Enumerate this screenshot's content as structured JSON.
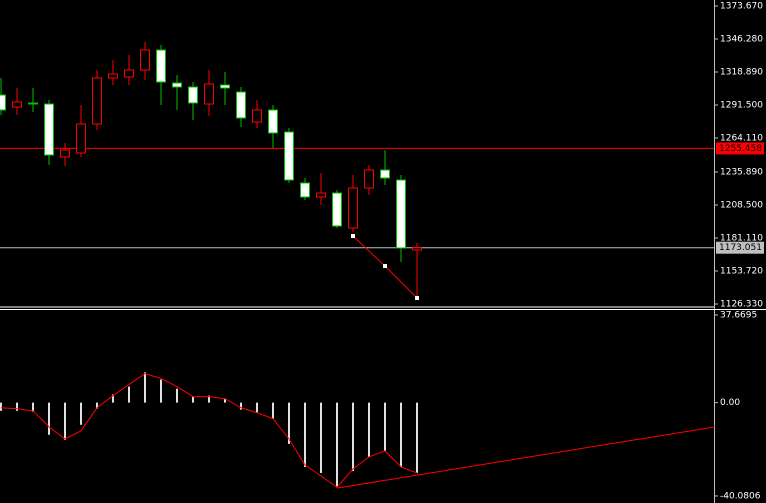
{
  "chart_data": [
    {
      "type": "candlestick",
      "open": [
        1299.8,
        1289.84,
        1293.16,
        1292.33,
        1248.34,
        1251.66,
        1275.73,
        1313.91,
        1314.74,
        1320.55,
        1337.15,
        1309.76,
        1306.44,
        1292.33,
        1308.1,
        1302.29,
        1277.39,
        1287.35,
        1269.09,
        1226.76,
        1215.14,
        1218.46,
        1189.41,
        1222.61,
        1237.55,
        1229.25,
        1171.15
      ],
      "high": [
        1313.91,
        1305.61,
        1305.61,
        1295.65,
        1259.96,
        1291.5,
        1320.55,
        1328.85,
        1333.0,
        1343.79,
        1341.3,
        1316.4,
        1310.59,
        1320.55,
        1318.89,
        1306.44,
        1295.65,
        1291.5,
        1272.41,
        1230.91,
        1235.06,
        1220.95,
        1233.4,
        1241.7,
        1254.15,
        1233.4,
        1176.96
      ],
      "low": [
        1283.2,
        1283.2,
        1285.69,
        1241.7,
        1240.86,
        1248.34,
        1270.75,
        1308.1,
        1308.1,
        1312.25,
        1291.5,
        1287.35,
        1279.05,
        1282.37,
        1291.5,
        1273.24,
        1272.41,
        1255.81,
        1226.76,
        1212.65,
        1208.5,
        1189.41,
        1186.09,
        1216.8,
        1225.1,
        1161.19,
        1129.65
      ],
      "close": [
        1287.35,
        1294.0,
        1292.33,
        1249.99,
        1254.15,
        1275.73,
        1313.91,
        1317.23,
        1320.55,
        1337.15,
        1310.59,
        1306.44,
        1293.16,
        1308.93,
        1305.61,
        1280.71,
        1287.35,
        1268.26,
        1229.25,
        1215.14,
        1218.46,
        1191.07,
        1222.61,
        1237.55,
        1230.91,
        1172.81,
        1173.051
      ],
      "up_color": "#ff0000",
      "down_color": "#00c000",
      "overlay": {
        "x": [
          22,
          24,
          26
        ],
        "values": [
          1182.75,
          1157.85,
          1131.31
        ],
        "color": "#ff0000"
      },
      "hlines": [
        {
          "value": 1255.458,
          "color": "#ff0000"
        },
        {
          "value": 1173.051,
          "color": "#c0c0c0"
        }
      ],
      "ylim": [
        1123.01,
        1378.65
      ],
      "yticks": [
        {
          "value": 1373.67,
          "label": "1373.670"
        },
        {
          "value": 1346.28,
          "label": "1346.280"
        },
        {
          "value": 1318.89,
          "label": "1318.890"
        },
        {
          "value": 1291.5,
          "label": "1291.500"
        },
        {
          "value": 1264.11,
          "label": "1264.110"
        },
        {
          "value": 1235.89,
          "label": "1235.890"
        },
        {
          "value": 1208.5,
          "label": "1208.500"
        },
        {
          "value": 1181.11,
          "label": "1181.110"
        },
        {
          "value": 1153.72,
          "label": "1153.720"
        },
        {
          "value": 1126.33,
          "label": "1126.330"
        }
      ]
    },
    {
      "type": "histogram",
      "values": [
        -3.5,
        -3.5,
        -3.9,
        -13.8,
        -16.0,
        -9.5,
        -2.6,
        3.5,
        6.9,
        13.0,
        9.9,
        6.0,
        2.6,
        3.0,
        1.7,
        -3.0,
        -4.3,
        -6.9,
        -17.7,
        -27.6,
        -30.2,
        -36.3,
        -29.4,
        -23.3,
        -20.7,
        -27.6,
        -30.2
      ],
      "color": "#e0e0e0",
      "signal": {
        "values": [
          -2.2,
          -2.6,
          -3.5,
          -10.4,
          -15.6,
          -12.1,
          -2.2,
          3.0,
          7.8,
          12.5,
          10.4,
          6.9,
          2.6,
          2.6,
          1.7,
          -2.2,
          -4.3,
          -6.9,
          -15.6,
          -26.8,
          -31.5,
          -36.3,
          -28.5,
          -23.3,
          -20.7,
          -27.6,
          -30.2
        ],
        "color": "#ff0000"
      },
      "trendline": {
        "x": [
          21,
          44.625
        ],
        "values": [
          -36.7,
          -10.4
        ],
        "color": "#ff0000"
      },
      "ylim": [
        -43.1,
        39.8
      ],
      "yticks": [
        37.6695,
        {
          "value": 0,
          "label": "0.00"
        },
        -40.0806
      ]
    }
  ]
}
